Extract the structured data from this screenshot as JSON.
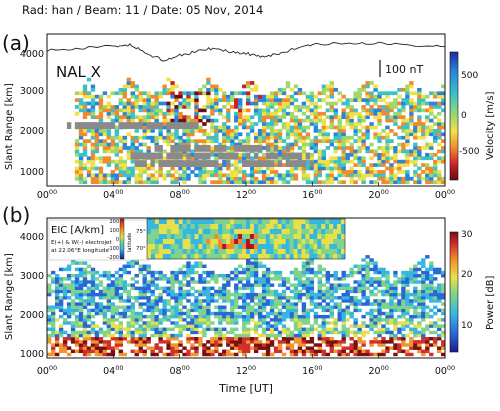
{
  "header": "Rad: han / Beam: 11 / Date: 05 Nov, 2014",
  "panel_a": {
    "label": "(a)",
    "station": "NAL X",
    "scale_bar": "100 nT",
    "ylabel": "Slant Range [km]",
    "yticks": [
      "1000",
      "2000",
      "3000",
      "4000"
    ],
    "colorbar_label": "Velocity [m/s]",
    "colorbar_ticks": [
      "500",
      "0",
      "-500"
    ],
    "colorbar_colors": [
      "#1f2aa6",
      "#2b84d9",
      "#3cc1c9",
      "#9fd86b",
      "#f2e04a",
      "#f08a2c",
      "#c8202a",
      "#6b0d12"
    ]
  },
  "panel_b": {
    "label": "(b)",
    "ylabel": "Slant Range [km]",
    "yticks": [
      "1000",
      "2000",
      "3000",
      "4000"
    ],
    "colorbar_label": "Power [dB]",
    "colorbar_ticks": [
      "30",
      "20",
      "10"
    ],
    "colorbar_colors": [
      "#1a1a8c",
      "#2a66d6",
      "#37b7e0",
      "#7fd38a",
      "#e8e04a",
      "#f0962f",
      "#d0302a",
      "#7a0e10"
    ],
    "inset": {
      "title": "EIC [A/km]",
      "line1": "E(+) & W(-) electrojet",
      "line2": "at 22.06°E longitude",
      "cb_ticks": [
        "200",
        "100",
        "0",
        "-100",
        "-200"
      ],
      "lat_label": "latitude",
      "lat_ticks": [
        "75°",
        "70°"
      ]
    }
  },
  "xaxis": {
    "label": "Time [UT]",
    "ticks": [
      {
        "h": "00",
        "m": "00"
      },
      {
        "h": "04",
        "m": "00"
      },
      {
        "h": "08",
        "m": "00"
      },
      {
        "h": "12",
        "m": "00"
      },
      {
        "h": "16",
        "m": "00"
      },
      {
        "h": "20",
        "m": "00"
      },
      {
        "h": "00",
        "m": "00"
      }
    ]
  },
  "chart_data": [
    {
      "type": "heatmap",
      "panel": "a",
      "quantity": "Velocity [m/s]",
      "xlim": [
        0,
        24
      ],
      "ylim": [
        500,
        4500
      ],
      "zlim": [
        -800,
        800
      ],
      "magnetogram_trace_nT": [
        [
          0,
          0
        ],
        [
          2,
          10
        ],
        [
          4,
          20
        ],
        [
          5,
          30
        ],
        [
          6,
          -20
        ],
        [
          7,
          -60
        ],
        [
          8,
          -30
        ],
        [
          9,
          -10
        ],
        [
          10,
          10
        ],
        [
          11,
          -10
        ],
        [
          12,
          -20
        ],
        [
          13,
          -40
        ],
        [
          14,
          -20
        ],
        [
          15,
          10
        ],
        [
          16,
          30
        ],
        [
          18,
          40
        ],
        [
          20,
          40
        ],
        [
          22,
          30
        ],
        [
          24,
          20
        ]
      ],
      "ground_scatter_rows_km": [
        1000,
        1200,
        1400,
        2000
      ]
    },
    {
      "type": "heatmap",
      "panel": "b",
      "quantity": "Power [dB]",
      "xlim": [
        0,
        24
      ],
      "ylim": [
        500,
        4500
      ],
      "zlim": [
        0,
        32
      ]
    }
  ]
}
